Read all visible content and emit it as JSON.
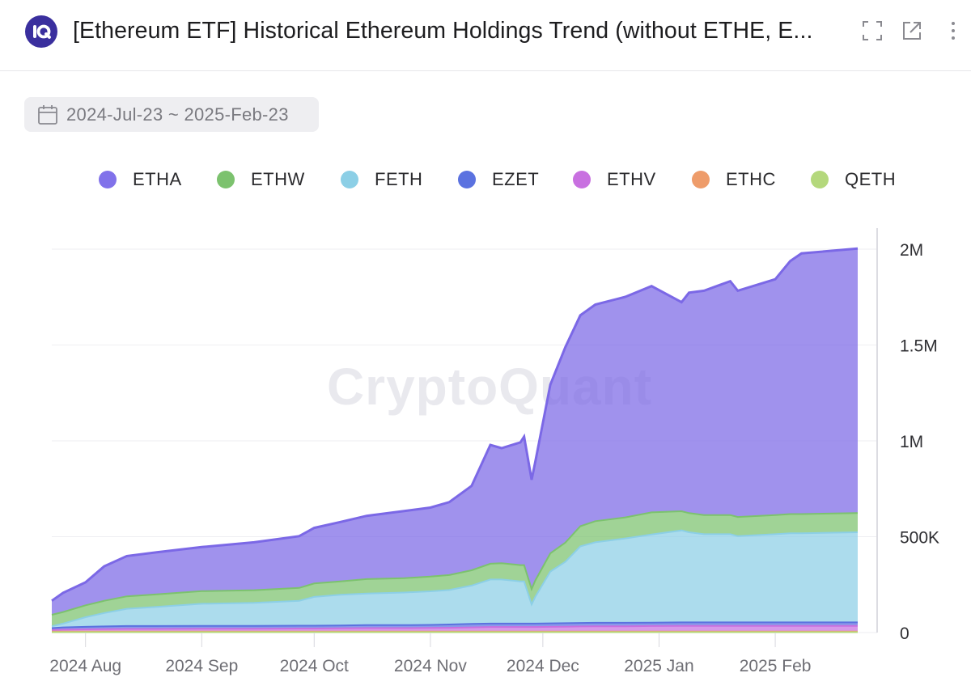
{
  "header": {
    "title": "[Ethereum ETF] Historical Ethereum Holdings Trend (without ETHE, E...",
    "logo_icon": "cryptoquant-logo",
    "actions": [
      {
        "name": "fullscreen-icon"
      },
      {
        "name": "open-external-icon"
      },
      {
        "name": "more-vertical-icon"
      }
    ]
  },
  "date_range": {
    "icon": "calendar-icon",
    "label": "2024-Jul-23 ~ 2025-Feb-23"
  },
  "watermark": "CryptoQuant",
  "colors": {
    "ETHA": "#7b68e6",
    "ETHW": "#7cc26e",
    "FETH": "#8ccfe6",
    "EZET": "#5b72e0",
    "ETHV": "#c870e0",
    "ETHC": "#ee9c6a",
    "QETH": "#b4d87c"
  },
  "chart_data": {
    "type": "area",
    "stacked": true,
    "x_axis": {
      "ticks": [
        "2024 Aug",
        "2024 Sep",
        "2024 Oct",
        "2024 Nov",
        "2024 Dec",
        "2025 Jan",
        "2025 Feb"
      ],
      "range": [
        "2024-07-23",
        "2025-02-23"
      ]
    },
    "y_axis": {
      "position": "right",
      "ticks": [
        "0",
        "500K",
        "1M",
        "1.5M",
        "2M"
      ],
      "range": [
        0,
        2000000
      ]
    },
    "grid": true,
    "legend": "top",
    "x": [
      "2024-07-23",
      "2024-07-26",
      "2024-08-01",
      "2024-08-06",
      "2024-08-12",
      "2024-08-20",
      "2024-09-01",
      "2024-09-15",
      "2024-09-27",
      "2024-10-01",
      "2024-10-08",
      "2024-10-15",
      "2024-10-25",
      "2024-11-01",
      "2024-11-06",
      "2024-11-12",
      "2024-11-17",
      "2024-11-20",
      "2024-11-25",
      "2024-11-26",
      "2024-11-28",
      "2024-11-29",
      "2024-12-03",
      "2024-12-07",
      "2024-12-11",
      "2024-12-15",
      "2024-12-23",
      "2024-12-30",
      "2025-01-07",
      "2025-01-09",
      "2025-01-13",
      "2025-01-20",
      "2025-01-22",
      "2025-02-01",
      "2025-02-05",
      "2025-02-08",
      "2025-02-23"
    ],
    "series": [
      {
        "name": "ETHA",
        "values": [
          73000,
          100000,
          120000,
          180000,
          210000,
          220000,
          230000,
          250000,
          270000,
          290000,
          310000,
          330000,
          350000,
          360000,
          380000,
          440000,
          620000,
          600000,
          640000,
          670000,
          570000,
          620000,
          880000,
          1020000,
          1100000,
          1130000,
          1150000,
          1180000,
          1090000,
          1150000,
          1170000,
          1220000,
          1180000,
          1230000,
          1320000,
          1360000,
          1380000
        ]
      },
      {
        "name": "ETHW",
        "values": [
          60000,
          60000,
          62000,
          64000,
          65000,
          65000,
          66000,
          66000,
          67000,
          70000,
          70000,
          75000,
          75000,
          77000,
          78000,
          80000,
          82000,
          85000,
          85000,
          85000,
          80000,
          85000,
          95000,
          100000,
          105000,
          110000,
          110000,
          115000,
          100000,
          100000,
          100000,
          100000,
          100000,
          100000,
          100000,
          100000,
          100000
        ]
      },
      {
        "name": "FETH",
        "values": [
          10000,
          20000,
          50000,
          70000,
          90000,
          100000,
          115000,
          120000,
          130000,
          150000,
          160000,
          165000,
          170000,
          175000,
          180000,
          200000,
          230000,
          230000,
          220000,
          220000,
          100000,
          140000,
          270000,
          320000,
          400000,
          420000,
          440000,
          460000,
          480000,
          470000,
          460000,
          460000,
          450000,
          460000,
          465000,
          465000,
          470000
        ]
      },
      {
        "name": "EZET",
        "values": [
          10000,
          12000,
          13000,
          14000,
          15000,
          15000,
          15000,
          15000,
          15000,
          15000,
          15000,
          16000,
          16000,
          16000,
          17000,
          18000,
          18000,
          18000,
          18000,
          18000,
          18000,
          18000,
          18000,
          18000,
          18000,
          18000,
          18000,
          18000,
          18000,
          18000,
          18000,
          18000,
          18000,
          18000,
          18000,
          18000,
          18000
        ]
      },
      {
        "name": "ETHV",
        "values": [
          8000,
          10000,
          12000,
          13000,
          14000,
          14000,
          15000,
          15000,
          16000,
          16000,
          17000,
          18000,
          18000,
          19000,
          20000,
          22000,
          24000,
          24000,
          24000,
          24000,
          24000,
          24000,
          25000,
          26000,
          27000,
          28000,
          28000,
          29000,
          30000,
          30000,
          30000,
          30000,
          30000,
          30000,
          30000,
          30000,
          30000
        ]
      },
      {
        "name": "ETHC",
        "values": [
          3000,
          3000,
          3000,
          3000,
          3000,
          3000,
          3000,
          3000,
          3000,
          3000,
          3000,
          3000,
          3000,
          3000,
          3000,
          3000,
          3000,
          3000,
          3000,
          3000,
          3000,
          3000,
          3000,
          3000,
          3000,
          3000,
          3000,
          3000,
          3000,
          3000,
          3000,
          3000,
          3000,
          3000,
          3000,
          3000,
          3000
        ]
      },
      {
        "name": "QETH",
        "values": [
          2000,
          2000,
          2000,
          2000,
          2000,
          2000,
          2000,
          2000,
          2000,
          2000,
          2000,
          2000,
          2000,
          2000,
          2000,
          2000,
          2000,
          2000,
          2000,
          2000,
          2000,
          2000,
          2000,
          2000,
          2000,
          2000,
          2000,
          2000,
          2000,
          2000,
          2000,
          2000,
          2000,
          2000,
          2000,
          2000,
          2000
        ]
      }
    ]
  }
}
